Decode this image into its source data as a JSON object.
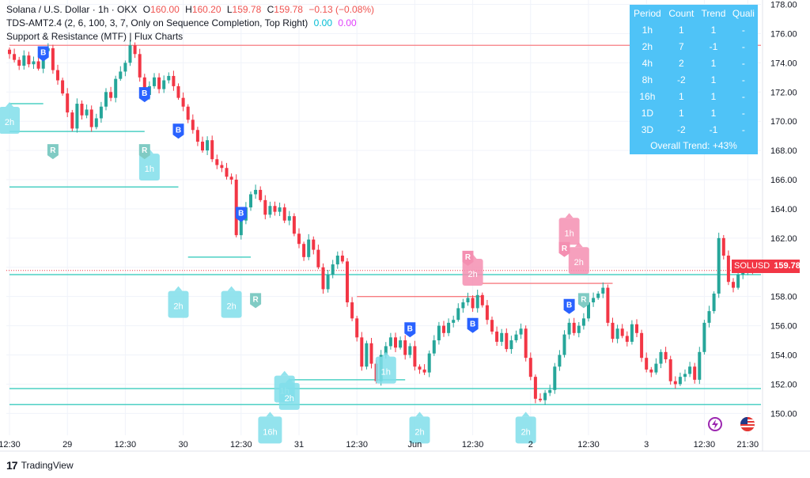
{
  "legend": {
    "symbol_line": "Solana / U.S. Dollar · 1h · OKX",
    "open_label": "O",
    "open": "160.00",
    "high_label": "H",
    "high": "160.20",
    "low_label": "L",
    "low": "159.78",
    "close_label": "C",
    "close": "159.78",
    "change": "−0.13 (−0.08%)",
    "indicator1": "TDS-AMT2.4 (2, 6, 100, 3, 7, Only on Sequence Completion, Top Right)",
    "indicator1_v1": "0.00",
    "indicator1_v2": "0.00",
    "indicator2": "Support & Resistance (MTF) | Flux Charts"
  },
  "mtf_table": {
    "headers": [
      "Period",
      "Count",
      "Trend",
      "Quali"
    ],
    "rows": [
      [
        "1h",
        "1",
        "1",
        "-"
      ],
      [
        "2h",
        "7",
        "-1",
        "-"
      ],
      [
        "4h",
        "2",
        "1",
        "-"
      ],
      [
        "8h",
        "-2",
        "1",
        "-"
      ],
      [
        "16h",
        "1",
        "1",
        "-"
      ],
      [
        "1D",
        "1",
        "1",
        "-"
      ],
      [
        "3D",
        "-2",
        "-1",
        "-"
      ]
    ],
    "overall": "Overall Trend: +43%"
  },
  "price_tag": {
    "symbol": "SOLUSD",
    "price": "159.78"
  },
  "footer": {
    "logo": "17",
    "brand": "TradingView"
  },
  "icons": [
    "lightning-icon",
    "us-flag-icon"
  ],
  "colors": {
    "up": "#26a69a",
    "down": "#f23645",
    "support": "#4dd0c4",
    "resistance": "#f77c80",
    "label_cyan": "#80deea",
    "label_pink": "#f48fb1",
    "buy_badge": "#2962ff",
    "revisit_badge": "#80cbc4"
  },
  "chart_data": {
    "type": "candlestick",
    "symbol": "Solana / U.S. Dollar",
    "interval": "1h",
    "exchange": "OKX",
    "y_ticks": [
      150,
      152,
      154,
      156,
      158,
      160,
      162,
      164,
      166,
      168,
      170,
      172,
      174,
      176,
      178
    ],
    "ylim": [
      148.5,
      178.3
    ],
    "x_ticks": [
      {
        "label": "12:30",
        "index": 0
      },
      {
        "label": "29",
        "index": 12
      },
      {
        "label": "12:30",
        "index": 24
      },
      {
        "label": "30",
        "index": 36
      },
      {
        "label": "12:30",
        "index": 48
      },
      {
        "label": "31",
        "index": 60
      },
      {
        "label": "12:30",
        "index": 72
      },
      {
        "label": "Jun",
        "index": 84
      },
      {
        "label": "12:30",
        "index": 96
      },
      {
        "label": "2",
        "index": 108
      },
      {
        "label": "12:30",
        "index": 120
      },
      {
        "label": "3",
        "index": 132
      },
      {
        "label": "12:30",
        "index": 144
      },
      {
        "label": "21:30",
        "index": 153
      }
    ],
    "closes": [
      174.6,
      174.2,
      173.8,
      174.5,
      173.9,
      174.1,
      173.6,
      174.8,
      175.0,
      173.5,
      172.8,
      171.9,
      170.6,
      169.5,
      171.2,
      170.4,
      170.8,
      169.6,
      170.2,
      171.0,
      172.0,
      171.6,
      172.9,
      173.4,
      174.0,
      175.2,
      174.6,
      173.0,
      171.8,
      172.4,
      173.0,
      172.2,
      172.8,
      173.1,
      172.4,
      171.6,
      171.0,
      170.1,
      169.4,
      168.6,
      168.0,
      168.7,
      167.4,
      167.0,
      166.8,
      166.2,
      166.0,
      162.2,
      163.2,
      164.1,
      165.0,
      165.3,
      164.6,
      163.6,
      164.2,
      163.8,
      164.1,
      163.2,
      163.5,
      162.3,
      161.6,
      160.7,
      161.9,
      161.2,
      160.0,
      158.5,
      159.5,
      160.2,
      160.8,
      160.4,
      157.6,
      156.5,
      155.2,
      153.2,
      154.8,
      153.4,
      152.2,
      154.0,
      154.6,
      155.2,
      154.5,
      155.0,
      154.0,
      154.6,
      153.2,
      153.0,
      152.8,
      154.1,
      155.0,
      156.0,
      155.5,
      156.2,
      156.4,
      157.2,
      157.6,
      157.9,
      157.2,
      158.1,
      157.4,
      156.4,
      155.6,
      154.9,
      155.5,
      154.4,
      155.0,
      155.4,
      155.8,
      153.8,
      152.5,
      151.0,
      150.9,
      151.4,
      151.6,
      153.2,
      154.0,
      155.4,
      156.2,
      155.5,
      156.0,
      156.5,
      157.6,
      157.9,
      158.2,
      158.6,
      156.2,
      155.1,
      155.8,
      155.3,
      154.9,
      156.1,
      155.5,
      153.8,
      153.0,
      152.8,
      153.4,
      154.2,
      153.7,
      152.2,
      152.0,
      152.5,
      152.7,
      153.2,
      152.3,
      154.2,
      156.2,
      157.0,
      158.2,
      162.0,
      160.8,
      159.0,
      158.6,
      159.5,
      159.7,
      160.0,
      159.78
    ],
    "support_lines": [
      {
        "y": 171.2,
        "from_index": 0,
        "to_index": 7
      },
      {
        "y": 169.3,
        "from_index": 0,
        "to_index": 28
      },
      {
        "y": 165.5,
        "from_index": 0,
        "to_index": 35
      },
      {
        "y": 160.7,
        "from_index": 37,
        "to_index": 50
      },
      {
        "y": 159.5,
        "from_index": 0,
        "to_index": 162
      },
      {
        "y": 152.3,
        "from_index": 58,
        "to_index": 82
      },
      {
        "y": 151.7,
        "from_index": 0,
        "to_index": 162
      },
      {
        "y": 150.6,
        "from_index": 0,
        "to_index": 162
      }
    ],
    "resistance_lines": [
      {
        "y": 175.2,
        "from_index": 0,
        "to_index": 162
      },
      {
        "y": 158.0,
        "from_index": 72,
        "to_index": 98
      },
      {
        "y": 158.9,
        "from_index": 98,
        "to_index": 125
      }
    ],
    "labels": [
      {
        "text": "2h",
        "kind": "cyan",
        "index": 0,
        "y": 171.2
      },
      {
        "text": "1h",
        "kind": "cyan",
        "index": 29,
        "y": 168.0
      },
      {
        "text": "2h",
        "kind": "cyan",
        "index": 35,
        "y": 158.6
      },
      {
        "text": "2h",
        "kind": "cyan",
        "index": 46,
        "y": 158.6
      },
      {
        "text": "16h",
        "kind": "cyan",
        "index": 54,
        "y": 150.0
      },
      {
        "text": "1h",
        "kind": "cyan",
        "index": 57,
        "y": 152.8
      },
      {
        "text": "2h",
        "kind": "cyan",
        "index": 58,
        "y": 152.3
      },
      {
        "text": "1h",
        "kind": "cyan",
        "index": 78,
        "y": 154.1
      },
      {
        "text": "2h",
        "kind": "cyan",
        "index": 85,
        "y": 150.0
      },
      {
        "text": "2h",
        "kind": "cyan",
        "index": 107,
        "y": 150.0
      },
      {
        "text": "2h",
        "kind": "pink",
        "index": 96,
        "y": 160.8
      },
      {
        "text": "1h",
        "kind": "pink",
        "index": 116,
        "y": 163.6
      },
      {
        "text": "2h",
        "kind": "pink",
        "index": 118,
        "y": 161.6
      }
    ],
    "badges": [
      {
        "text": "B",
        "kind": "buy",
        "index": 7,
        "y": 174.7
      },
      {
        "text": "B",
        "kind": "buy",
        "index": 28,
        "y": 171.9
      },
      {
        "text": "B",
        "kind": "buy",
        "index": 35,
        "y": 169.4
      },
      {
        "text": "B",
        "kind": "buy",
        "index": 48,
        "y": 163.7
      },
      {
        "text": "B",
        "kind": "buy",
        "index": 83,
        "y": 155.8
      },
      {
        "text": "B",
        "kind": "buy",
        "index": 96,
        "y": 156.1
      },
      {
        "text": "B",
        "kind": "buy",
        "index": 116,
        "y": 157.4
      },
      {
        "text": "R",
        "kind": "revisit",
        "index": 9,
        "y": 168.0
      },
      {
        "text": "R",
        "kind": "revisit",
        "index": 28,
        "y": 168.0
      },
      {
        "text": "R",
        "kind": "revisit",
        "index": 51,
        "y": 157.8
      },
      {
        "text": "R",
        "kind": "revisit",
        "index": 119,
        "y": 157.8
      },
      {
        "text": "R",
        "kind": "revisit-pink",
        "index": 95,
        "y": 160.7
      },
      {
        "text": "R",
        "kind": "revisit-pink",
        "index": 115,
        "y": 161.3
      }
    ]
  }
}
